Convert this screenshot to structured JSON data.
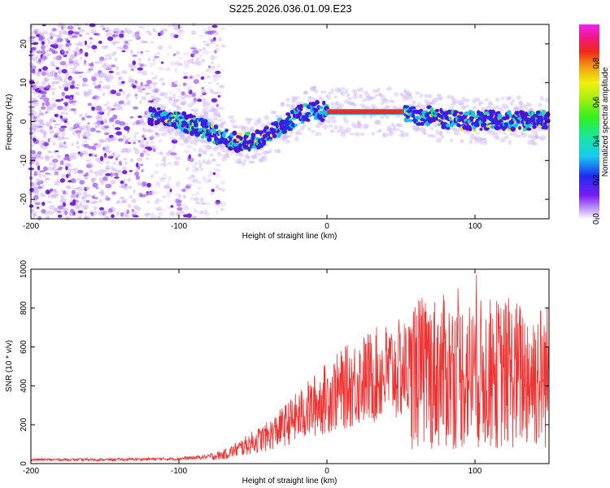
{
  "figure_title": "S225.2026.036.01.09.E23",
  "chart_data": [
    {
      "type": "heatmap",
      "title": "S225.2026.036.01.09.E23",
      "xlabel": "Height of straight line (km)",
      "ylabel": "Frequency (Hz)",
      "xlim": [
        -200,
        150
      ],
      "ylim": [
        -25,
        25
      ],
      "x_ticks": [
        -200,
        -100,
        0,
        100
      ],
      "y_ticks": [
        -20,
        -10,
        0,
        10,
        20
      ],
      "colorbar": {
        "label": "Normalized spectral amplitude",
        "range": [
          0,
          1
        ],
        "ticks": [
          "0.0",
          "0.2",
          "0.4",
          "0.6",
          "0.8"
        ]
      },
      "ridge_x": [
        -120,
        -110,
        -100,
        -90,
        -80,
        -70,
        -60,
        -50,
        -40,
        -30,
        -20,
        -10,
        0,
        10,
        20,
        30,
        40,
        50,
        60,
        70,
        80,
        90,
        100,
        110,
        120,
        130,
        140,
        150
      ],
      "ridge_freq": [
        1.5,
        1.5,
        0.5,
        -1,
        -2.5,
        -4,
        -5.5,
        -5,
        -3.5,
        -1,
        1.5,
        3,
        2.5,
        2.5,
        2.5,
        2.5,
        2.5,
        2.5,
        1.5,
        1.5,
        0.5,
        0.5,
        0,
        0.5,
        0,
        0.5,
        0,
        0.5
      ],
      "constant_segment": {
        "x_start": 0,
        "x_end": 52,
        "freq": 2.5
      }
    },
    {
      "type": "line",
      "xlabel": "Height of straight line (km)",
      "ylabel": "SNR (10 * v/v)",
      "xlim": [
        -200,
        150
      ],
      "ylim": [
        0,
        1000
      ],
      "x_ticks": [
        -200,
        -100,
        0,
        100
      ],
      "y_ticks": [
        0,
        200,
        400,
        600,
        800,
        1000
      ],
      "series": [
        {
          "name": "SNR",
          "color": "#ee3333",
          "envelope_x": [
            -200,
            -150,
            -100,
            -80,
            -70,
            -60,
            -50,
            -40,
            -30,
            -20,
            -10,
            0,
            20,
            40,
            50,
            57,
            58,
            80,
            100,
            120,
            150
          ],
          "envelope_mean": [
            20,
            20,
            25,
            35,
            45,
            75,
            110,
            140,
            190,
            240,
            290,
            340,
            420,
            470,
            480,
            490,
            470,
            470,
            460,
            460,
            450
          ]
        }
      ]
    }
  ]
}
